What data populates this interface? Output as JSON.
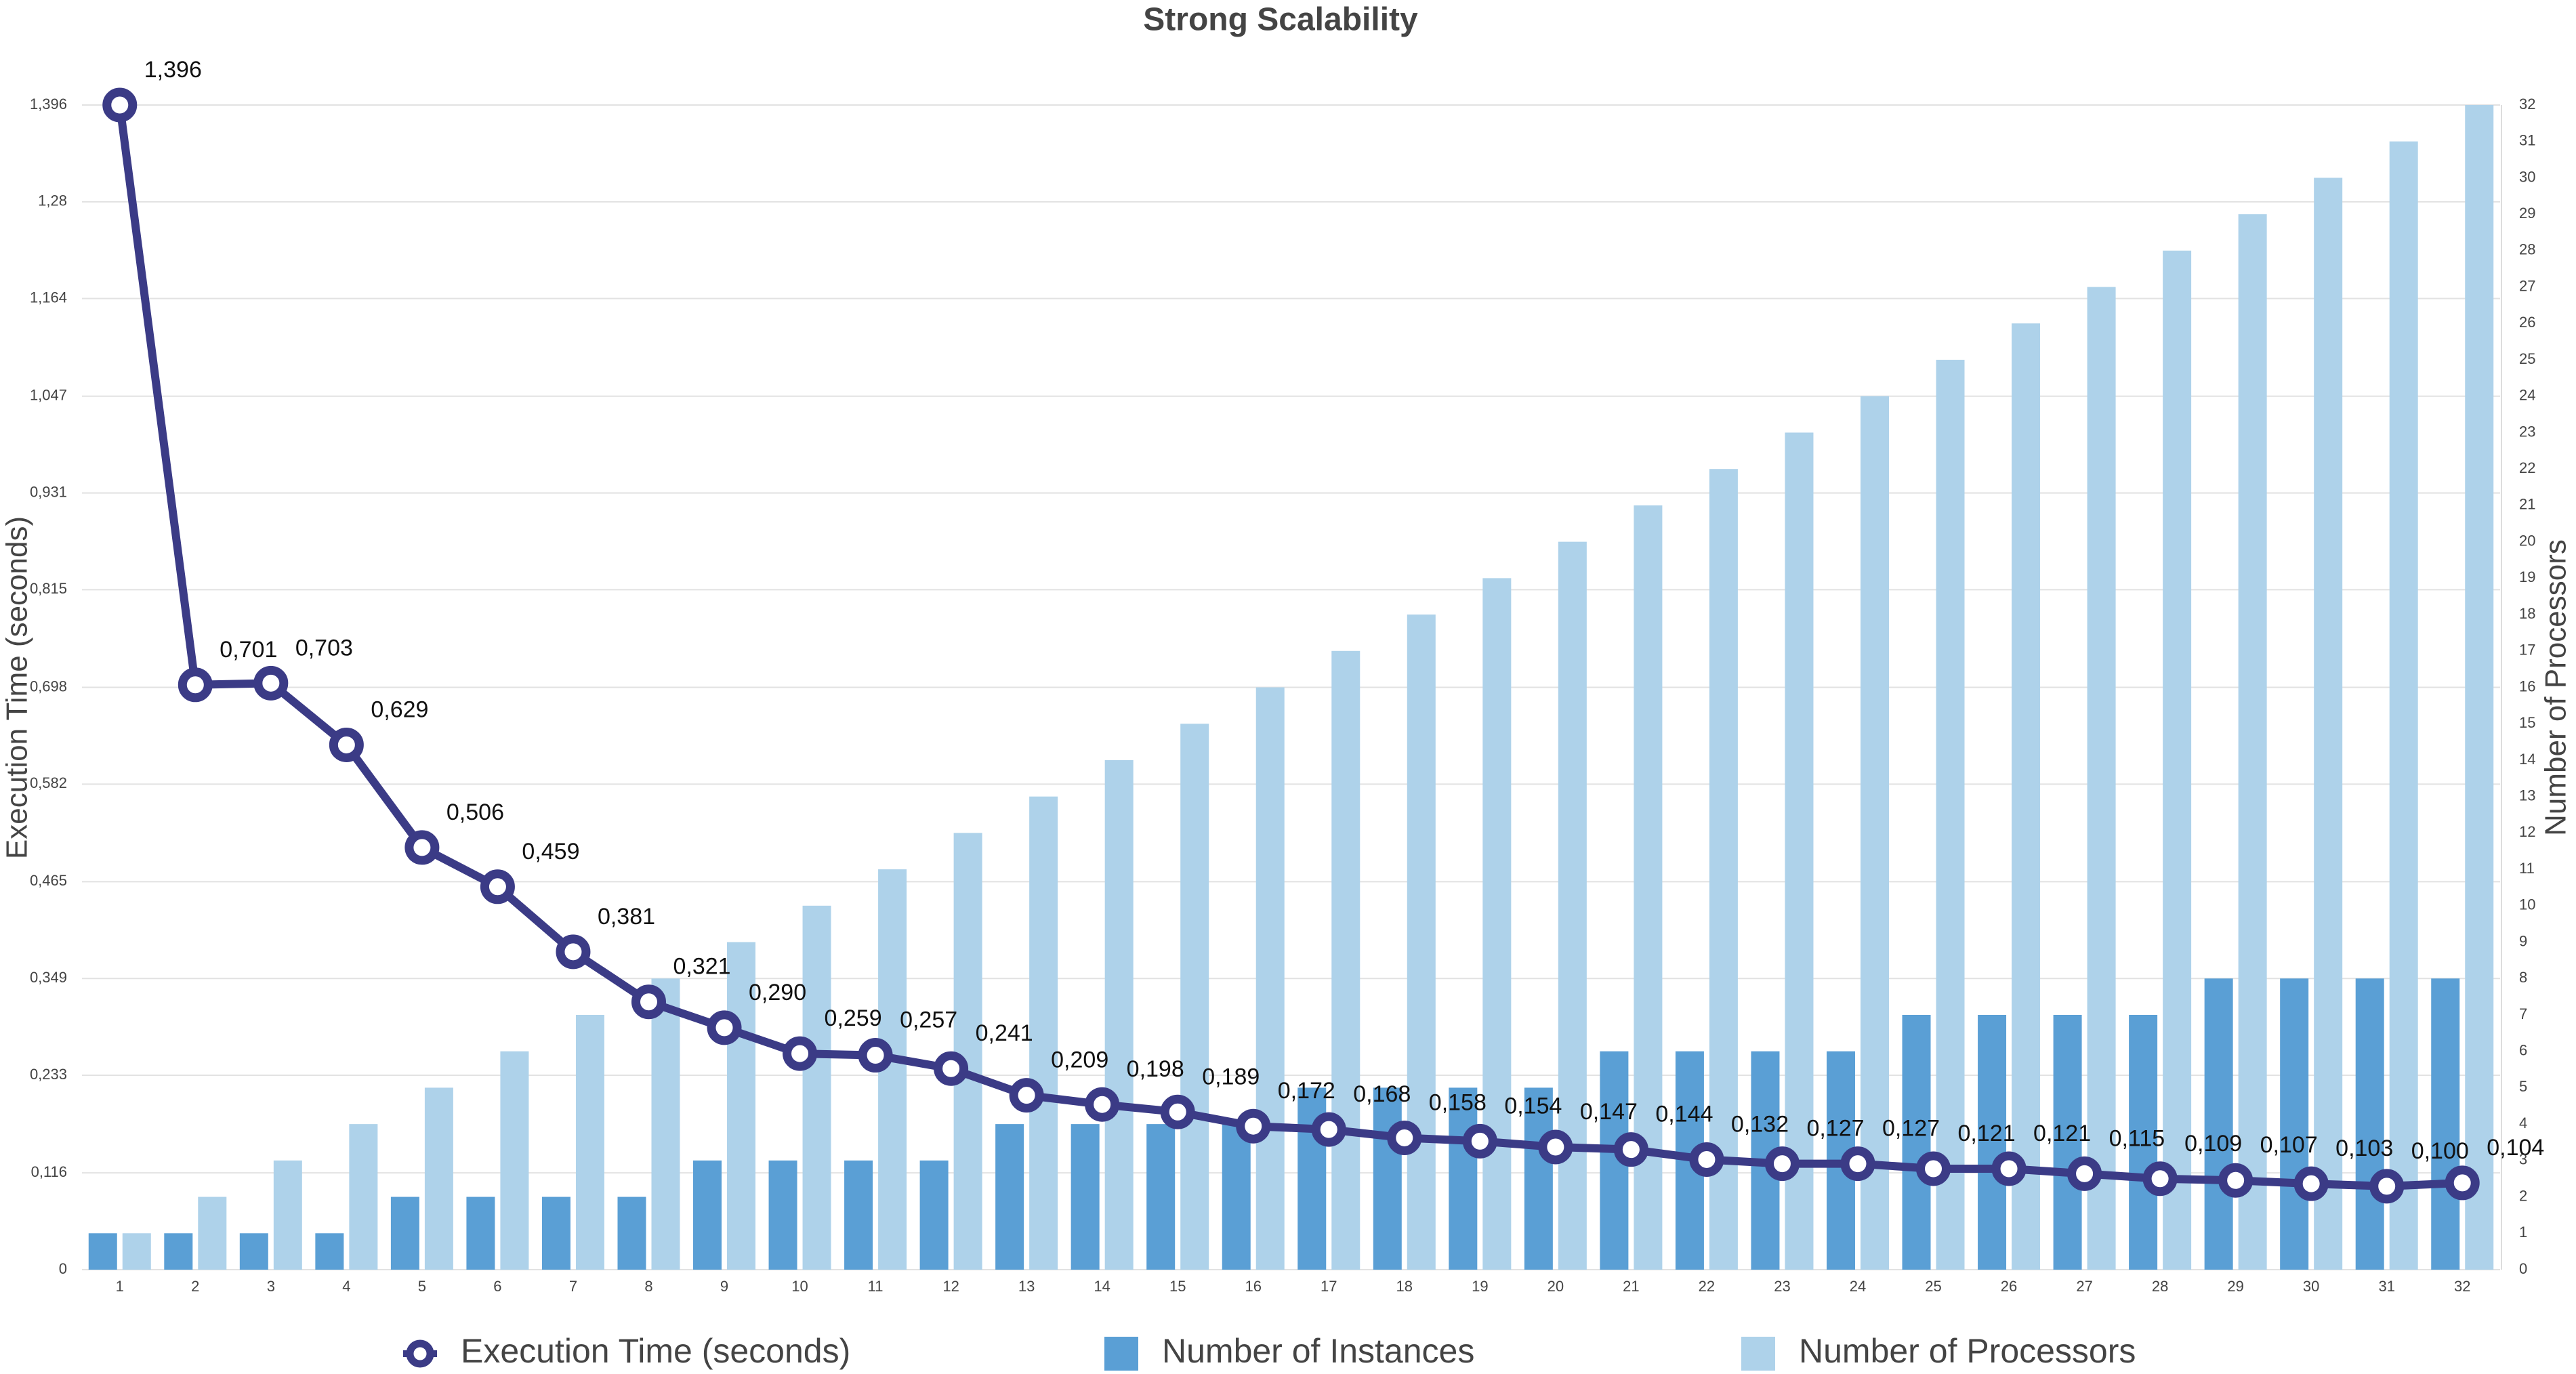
{
  "chart_data": {
    "type": "combo",
    "title": "Strong Scalability",
    "y_label": "Execution Time (seconds)",
    "y2_label": "Number of Processors",
    "categories": [
      "1",
      "2",
      "3",
      "4",
      "5",
      "6",
      "7",
      "8",
      "9",
      "10",
      "11",
      "12",
      "13",
      "14",
      "15",
      "16",
      "17",
      "18",
      "19",
      "20",
      "21",
      "22",
      "23",
      "24",
      "25",
      "26",
      "27",
      "28",
      "29",
      "30",
      "31",
      "32"
    ],
    "ylim": [
      0,
      1.396
    ],
    "yticks": [
      0,
      {
        "value": 0.116,
        "label": "0,116"
      },
      {
        "value": 0.233,
        "label": "0,233"
      },
      {
        "value": 0.349,
        "label": "0,349"
      },
      {
        "value": 0.465,
        "label": "0,465"
      },
      {
        "value": 0.582,
        "label": "0,582"
      },
      {
        "value": 0.698,
        "label": "0,698"
      },
      {
        "value": 0.815,
        "label": "0,815"
      },
      {
        "value": 0.931,
        "label": "0,931"
      },
      {
        "value": 1.047,
        "label": "1,047"
      },
      {
        "value": 1.164,
        "label": "1,164"
      },
      {
        "value": 1.28,
        "label": "1,28"
      },
      {
        "value": 1.396,
        "label": "1,396"
      }
    ],
    "y2lim": [
      0,
      32
    ],
    "y2ticks": [
      0,
      1,
      2,
      3,
      4,
      5,
      6,
      7,
      8,
      9,
      10,
      11,
      12,
      13,
      14,
      15,
      16,
      17,
      18,
      19,
      20,
      21,
      22,
      23,
      24,
      25,
      26,
      27,
      28,
      29,
      30,
      31,
      32
    ],
    "grid": true,
    "legend": "bottom",
    "series": [
      {
        "name": "Execution Time (seconds)",
        "type": "line",
        "color": "#3b3b86",
        "values": [
          1.396,
          0.701,
          0.703,
          0.629,
          0.506,
          0.459,
          0.381,
          0.321,
          0.29,
          0.259,
          0.257,
          0.241,
          0.209,
          0.198,
          0.189,
          0.172,
          0.168,
          0.158,
          0.154,
          0.147,
          0.144,
          0.132,
          0.127,
          0.127,
          0.121,
          0.121,
          0.115,
          0.109,
          0.107,
          0.103,
          0.1,
          0.104
        ],
        "value_labels": [
          "1,396",
          "0,701",
          "0,703",
          "0,629",
          "0,506",
          "0,459",
          "0,381",
          "0,321",
          "0,290",
          "0,259",
          "0,257",
          "0,241",
          "0,209",
          "0,198",
          "0,189",
          "0,172",
          "0,168",
          "0,158",
          "0,154",
          "0,147",
          "0,144",
          "0,132",
          "0,127",
          "0,127",
          "0,121",
          "0,121",
          "0,115",
          "0,109",
          "0,107",
          "0,103",
          "0,100",
          "0,104"
        ]
      },
      {
        "name": "Number of Instances",
        "type": "bar",
        "axis": "y2",
        "color": "#5a9fd5",
        "values": [
          1,
          1,
          1,
          1,
          2,
          2,
          2,
          2,
          3,
          3,
          3,
          3,
          4,
          4,
          4,
          4,
          5,
          5,
          5,
          5,
          6,
          6,
          6,
          6,
          7,
          7,
          7,
          7,
          8,
          8,
          8,
          8
        ]
      },
      {
        "name": "Number of Processors",
        "type": "bar",
        "axis": "y2",
        "color": "#aed2ea",
        "values": [
          1,
          2,
          3,
          4,
          5,
          6,
          7,
          8,
          9,
          10,
          11,
          12,
          13,
          14,
          15,
          16,
          17,
          18,
          19,
          20,
          21,
          22,
          23,
          24,
          25,
          26,
          27,
          28,
          29,
          30,
          31,
          32
        ]
      }
    ]
  }
}
